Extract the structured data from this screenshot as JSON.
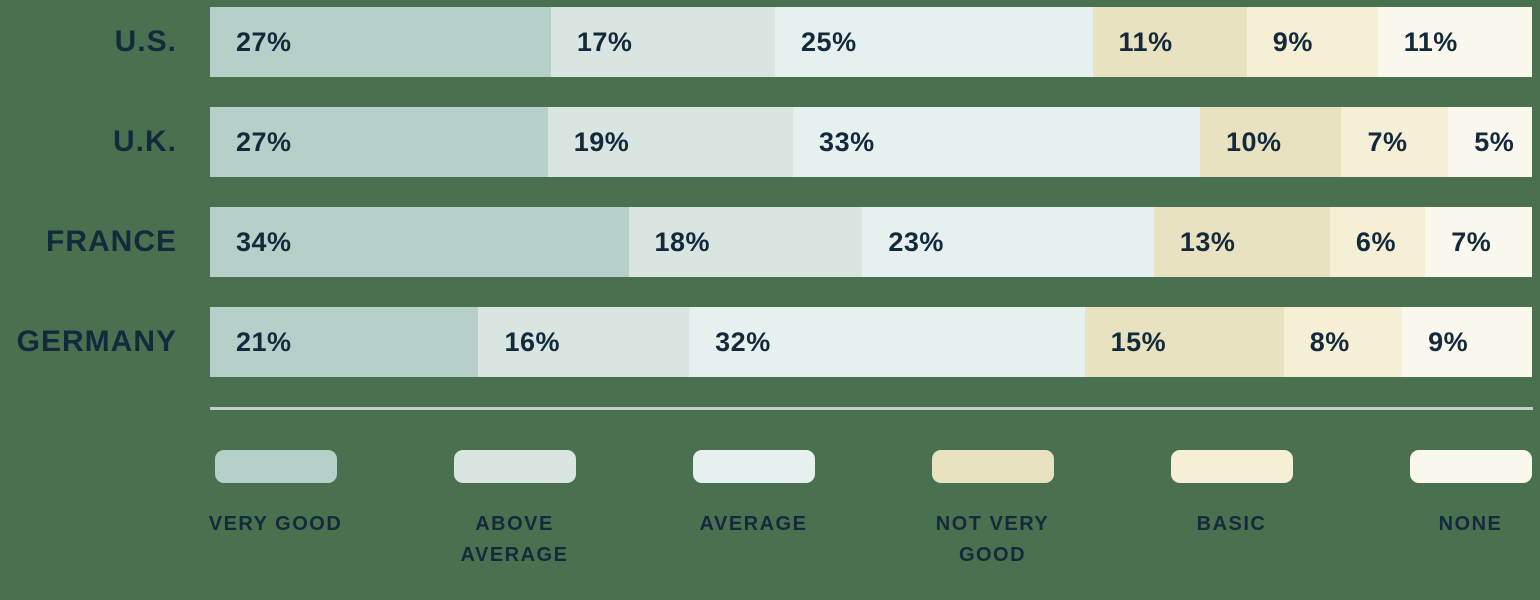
{
  "chart_data": {
    "type": "bar",
    "variant": "horizontal_stacked",
    "unit": "%",
    "value_label_format": "{value}%",
    "xlim": [
      0,
      100
    ],
    "grid": false,
    "legend_position": "bottom",
    "categories": [
      "Very good",
      "Above average",
      "Average",
      "Not very good",
      "Basic",
      "None"
    ],
    "series_colors": [
      "#b6cfc9",
      "#d9e5e1",
      "#e6f0ee",
      "#e9e2c0",
      "#f5efd6",
      "#faf8ec"
    ],
    "rows": [
      {
        "label": "U.S.",
        "values": [
          27,
          17,
          25,
          11,
          9,
          11
        ]
      },
      {
        "label": "U.K.",
        "values": [
          27,
          19,
          33,
          10,
          7,
          5
        ]
      },
      {
        "label": "FRANCE",
        "values": [
          34,
          18,
          23,
          13,
          6,
          7
        ]
      },
      {
        "label": "GERMANY",
        "values": [
          21,
          16,
          32,
          15,
          8,
          9
        ]
      }
    ]
  },
  "legend": {
    "items": [
      {
        "label": "VERY GOOD",
        "color": "#b6cfc9"
      },
      {
        "label": "ABOVE AVERAGE",
        "color": "#d9e5e1"
      },
      {
        "label": "AVERAGE",
        "color": "#e6f0ee"
      },
      {
        "label": "NOT VERY GOOD",
        "color": "#e9e2c0"
      },
      {
        "label": "BASIC",
        "color": "#f5efd6"
      },
      {
        "label": "NONE",
        "color": "#faf8ec"
      }
    ]
  },
  "colors": {
    "background": "#49714f",
    "text": "#132a3c",
    "divider": "#c4cdc9"
  }
}
